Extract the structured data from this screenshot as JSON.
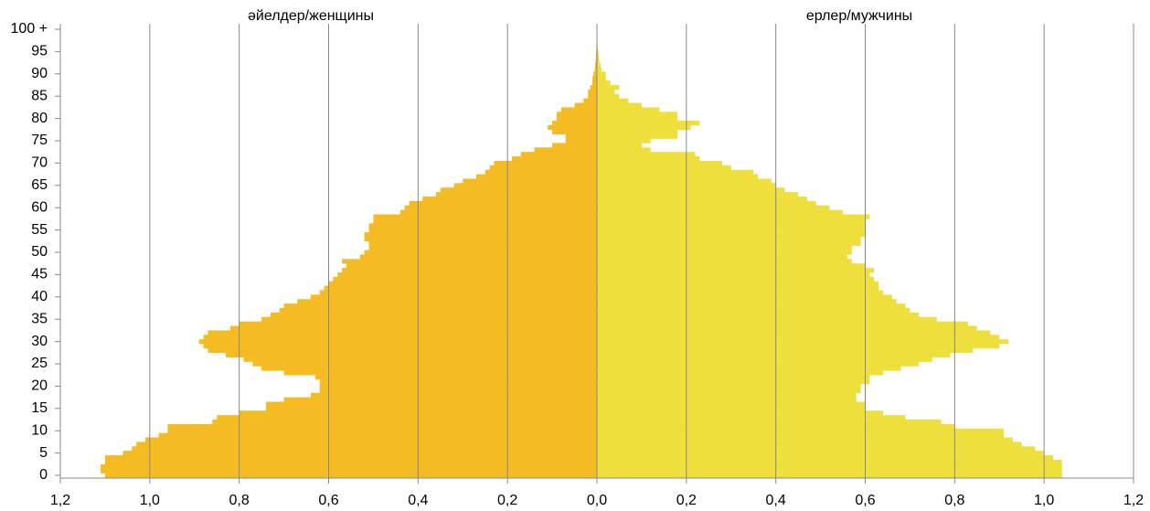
{
  "chart_data": {
    "type": "pyramid",
    "labels": [
      "әйелдер/женщины",
      "ерлер/мужчины"
    ],
    "categories": [
      0,
      null,
      null,
      null,
      null,
      5,
      null,
      null,
      null,
      null,
      10,
      null,
      null,
      null,
      null,
      15,
      null,
      null,
      null,
      null,
      20,
      null,
      null,
      null,
      null,
      25,
      null,
      null,
      null,
      null,
      30,
      null,
      null,
      null,
      null,
      35,
      null,
      null,
      null,
      null,
      40,
      null,
      null,
      null,
      null,
      45,
      null,
      null,
      null,
      null,
      50,
      null,
      null,
      null,
      null,
      55,
      null,
      null,
      null,
      null,
      60,
      null,
      null,
      null,
      null,
      65,
      null,
      null,
      null,
      null,
      70,
      null,
      null,
      null,
      null,
      75,
      null,
      null,
      null,
      null,
      80,
      null,
      null,
      null,
      null,
      85,
      null,
      null,
      null,
      null,
      90,
      null,
      null,
      null,
      null,
      95,
      null,
      null,
      null,
      null,
      "100 +"
    ],
    "series": [
      {
        "name": "әйелдер/женщины",
        "side": "left",
        "color": "#f4bb22",
        "values": [
          1.1,
          1.11,
          1.11,
          1.1,
          1.1,
          1.06,
          1.04,
          1.03,
          1.01,
          0.98,
          0.96,
          0.96,
          0.86,
          0.85,
          0.8,
          0.74,
          0.74,
          0.7,
          0.64,
          0.62,
          0.62,
          0.62,
          0.63,
          0.7,
          0.75,
          0.77,
          0.79,
          0.83,
          0.87,
          0.88,
          0.89,
          0.88,
          0.87,
          0.82,
          0.8,
          0.75,
          0.73,
          0.71,
          0.7,
          0.67,
          0.64,
          0.62,
          0.61,
          0.6,
          0.59,
          0.58,
          0.57,
          0.56,
          0.57,
          0.53,
          0.52,
          0.51,
          0.51,
          0.52,
          0.52,
          0.51,
          0.51,
          0.5,
          0.5,
          0.44,
          0.43,
          0.42,
          0.39,
          0.36,
          0.35,
          0.32,
          0.3,
          0.27,
          0.25,
          0.24,
          0.23,
          0.19,
          0.17,
          0.14,
          0.1,
          0.07,
          0.07,
          0.1,
          0.11,
          0.1,
          0.09,
          0.09,
          0.08,
          0.05,
          0.03,
          0.02,
          0.02,
          0.015,
          0.01,
          0.01,
          0.008,
          0.005,
          0.004,
          0.003,
          0.002,
          0.002,
          0.001,
          0.001,
          0.001,
          0.001,
          0.001
        ]
      },
      {
        "name": "ерлер/мужчины",
        "side": "right",
        "color": "#eedf3c",
        "values": [
          1.04,
          1.04,
          1.04,
          1.04,
          1.02,
          1.0,
          0.98,
          0.95,
          0.93,
          0.91,
          0.91,
          0.8,
          0.77,
          0.69,
          0.64,
          0.6,
          0.6,
          0.58,
          0.58,
          0.59,
          0.59,
          0.61,
          0.61,
          0.64,
          0.68,
          0.72,
          0.75,
          0.79,
          0.84,
          0.9,
          0.92,
          0.9,
          0.88,
          0.85,
          0.83,
          0.76,
          0.72,
          0.7,
          0.69,
          0.67,
          0.66,
          0.64,
          0.63,
          0.63,
          0.62,
          0.61,
          0.62,
          0.6,
          0.57,
          0.56,
          0.57,
          0.57,
          0.59,
          0.59,
          0.6,
          0.6,
          0.6,
          0.6,
          0.61,
          0.55,
          0.52,
          0.49,
          0.47,
          0.45,
          0.42,
          0.4,
          0.39,
          0.36,
          0.35,
          0.3,
          0.28,
          0.23,
          0.22,
          0.12,
          0.1,
          0.12,
          0.18,
          0.18,
          0.21,
          0.23,
          0.18,
          0.18,
          0.14,
          0.1,
          0.07,
          0.05,
          0.04,
          0.05,
          0.03,
          0.02,
          0.02,
          0.01,
          0.008,
          0.005,
          0.004,
          0.003,
          0.002,
          0.001,
          0.001,
          0.001,
          0.001
        ]
      }
    ],
    "xlim": [
      -1.2,
      1.2
    ],
    "xticks": [
      {
        "value": -1.2,
        "label": "1,2"
      },
      {
        "value": -1.0,
        "label": "1,0"
      },
      {
        "value": -0.8,
        "label": "0,8"
      },
      {
        "value": -0.6,
        "label": "0,6"
      },
      {
        "value": -0.4,
        "label": "0,4"
      },
      {
        "value": -0.2,
        "label": "0,2"
      },
      {
        "value": 0,
        "label": "0,0"
      },
      {
        "value": 0.2,
        "label": "0,2"
      },
      {
        "value": 0.4,
        "label": "0,4"
      },
      {
        "value": 0.6,
        "label": "0,6"
      },
      {
        "value": 0.8,
        "label": "0,8"
      },
      {
        "value": 1.0,
        "label": "1,0"
      },
      {
        "value": 1.2,
        "label": "1,2"
      }
    ],
    "grid": true
  }
}
